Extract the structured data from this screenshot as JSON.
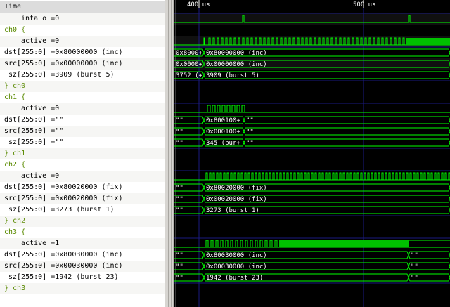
{
  "colors": {
    "wave": "#00ff00",
    "gap": "#00c000",
    "grid": "#1a1a80",
    "cursor": "#6e6e6e"
  },
  "signals": {
    "header": "Time",
    "rows": [
      "inta_o =0",
      "ch0 {",
      "active =0",
      "dst[255:0] =0x80000000 (inc)",
      "src[255:0] =0x00000000 (inc)",
      "sz[255:0] =3909 (burst 5)",
      "} ch0",
      "ch1 {",
      "active =0",
      "dst[255:0] =\"\"",
      "src[255:0] =\"\"",
      "sz[255:0] =\"\"",
      "} ch1",
      "ch2 {",
      "active =0",
      "dst[255:0] =0x80020000 (fix)",
      "src[255:0] =0x00020000 (fix)",
      "sz[255:0] =3273 (burst 1)",
      "} ch2",
      "ch3 {",
      "active =1",
      "dst[255:0] =0x80030000 (inc)",
      "src[255:0] =0x00030000 (inc)",
      "sz[255:0] =1942 (burst 23)",
      "} ch3"
    ]
  },
  "timeline": {
    "ticks": [
      "400 us",
      "500 us"
    ]
  },
  "waves": {
    "ch0": {
      "dst": [
        "0x8000+",
        "0x80000000 (inc)"
      ],
      "src": [
        "0x0000+",
        "0x00000000 (inc)"
      ],
      "sz": [
        "3752 (+",
        "3909 (burst 5)"
      ]
    },
    "ch1": {
      "dst": [
        "\"\"",
        "0x800100+",
        "\"\""
      ],
      "src": [
        "\"\"",
        "0x000100+",
        "\"\""
      ],
      "sz": [
        "\"\"",
        "345 (bur+",
        "\"\""
      ]
    },
    "ch2": {
      "dst": [
        "\"\"",
        "0x80020000 (fix)"
      ],
      "src": [
        "\"\"",
        "0x00020000 (fix)"
      ],
      "sz": [
        "\"\"",
        "3273 (burst 1)"
      ]
    },
    "ch3": {
      "dst": [
        "\"\"",
        "0x80030000 (inc)",
        "\"\""
      ],
      "src": [
        "\"\"",
        "0x00030000 (inc)",
        "\"\""
      ],
      "sz": [
        "\"\"",
        "1942 (burst 23)",
        "\"\""
      ]
    }
  }
}
